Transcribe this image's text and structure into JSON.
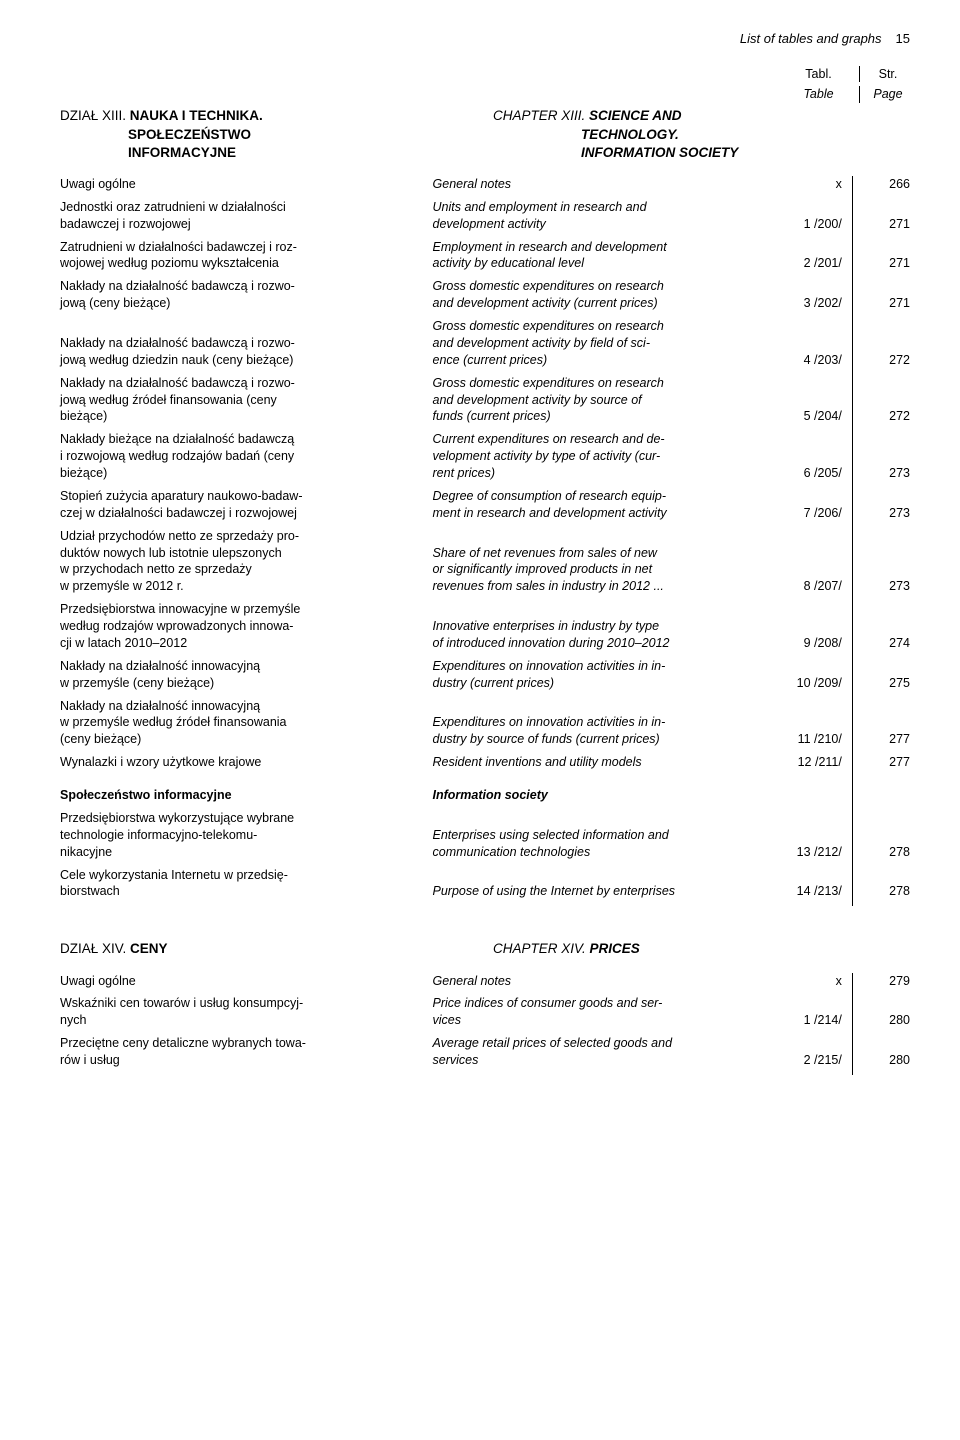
{
  "header": {
    "title_italic": "List of tables and graphs",
    "page_num": "15"
  },
  "colhead": {
    "c1a": "Tabl.",
    "c1b": "Table",
    "c2a": "Str.",
    "c2b": "Page"
  },
  "section13": {
    "pl_lab": "DZIAŁ  XIII.",
    "pl_main": "NAUKA  I  TECHNIKA.",
    "pl_sub": "SPOŁECZEŃSTWO",
    "pl_sub2": "INFORMACYJNE",
    "en_lab": "CHAPTER  XIII.",
    "en_main": "SCIENCE  AND",
    "en_sub": "TECHNOLOGY.",
    "en_sub2": "INFORMATION SOCIETY"
  },
  "rows13": [
    {
      "pl1": "",
      "pl2": "Uwagi ogólne",
      "en1": "",
      "en2": "General notes",
      "tbl": "x",
      "pg": "266"
    },
    {
      "pl1": "Jednostki oraz zatrudnieni w działalności",
      "pl2": "badawczej i rozwojowej",
      "en1": "Units and employment in research and",
      "en2": "development activity",
      "tbl": "1 /200/",
      "pg": "271"
    },
    {
      "pl1": "Zatrudnieni w działalności badawczej i roz-\nwojowej według poziomu wykształcenia",
      "pl2": "",
      "en1": "Employment in research and development",
      "en2": "activity by educational level",
      "tbl": "2 /201/",
      "pg": "271",
      "nodots_pl": true
    },
    {
      "pl1": "Nakłady na działalność badawczą i rozwo-",
      "pl2": "jową (ceny bieżące)",
      "en1": "Gross domestic expenditures on research\nand development activity (current prices)",
      "en2": "",
      "tbl": "3 /202/",
      "pg": "271",
      "nodots_en": true
    },
    {
      "pl1": "Nakłady na działalność badawczą i rozwo-\njową według dziedzin nauk (ceny bieżące)",
      "pl2": "",
      "en1": "Gross domestic expenditures on research\nand development activity by field of sci-",
      "en2": "ence (current prices)",
      "tbl": "4 /203/",
      "pg": "272",
      "nodots_pl": true
    },
    {
      "pl1": "Nakłady na działalność badawczą i rozwo-\njową według źródeł finansowania (ceny",
      "pl2": "bieżące)",
      "en1": "Gross domestic expenditures on research\nand development activity by source of",
      "en2": "funds (current prices)",
      "tbl": "5 /204/",
      "pg": "272"
    },
    {
      "pl1": "Nakłady bieżące na działalność badawczą\ni rozwojową według rodzajów badań (ceny",
      "pl2": "bieżące)",
      "en1": "Current expenditures on research and de-\nvelopment activity by type of activity (cur-",
      "en2": "rent prices)",
      "tbl": "6 /205/",
      "pg": "273"
    },
    {
      "pl1": "Stopień zużycia aparatury naukowo-badaw-\nczej w działalności badawczej i rozwojowej",
      "pl2": "",
      "en1": "Degree of consumption of research equip-\nment in research and development activity",
      "en2": "",
      "tbl": "7 /206/",
      "pg": "273",
      "nodots_pl": true,
      "nodots_en": true
    },
    {
      "pl1": "Udział przychodów netto ze sprzedaży pro-\nduktów nowych lub istotnie ulepszonych\nw przychodach netto ze sprzedaży",
      "pl2": "w przemyśle w 2012 r.",
      "en1": "Share of net revenues from sales of new\nor significantly improved products in net",
      "en2": "revenues from sales in industry in 2012",
      "tbl": "8 /207/",
      "pg": "273",
      "en_trail": "..."
    },
    {
      "pl1": "Przedsiębiorstwa innowacyjne w przemyśle\nwedług rodzajów wprowadzonych innowa-",
      "pl2": "cji w latach 2010–2012",
      "en1": "Innovative enterprises in industry by type\nof introduced innovation during 2010–2012",
      "en2": "",
      "tbl": "9 /208/",
      "pg": "274",
      "nodots_en": true
    },
    {
      "pl1": "Nakłady na działalność innowacyjną",
      "pl2": "w przemyśle (ceny bieżące)",
      "en1": "Expenditures on innovation activities in in-",
      "en2": "dustry (current prices)",
      "tbl": "10 /209/",
      "pg": "275"
    },
    {
      "pl1": "Nakłady na działalność innowacyjną\nw przemyśle według źródeł finansowania",
      "pl2": "(ceny bieżące)",
      "en1": "Expenditures on innovation activities in in-\ndustry by source of funds (current prices)",
      "en2": "",
      "tbl": "11 /210/",
      "pg": "277",
      "nodots_en": true
    },
    {
      "pl1": "",
      "pl2": "Wynalazki i wzory użytkowe krajowe",
      "en1": "",
      "en2": "Resident inventions and utility models",
      "tbl": "12 /211/",
      "pg": "277"
    }
  ],
  "subhead13": {
    "pl": "Społeczeństwo informacyjne",
    "en": "Information society"
  },
  "rows13b": [
    {
      "pl1": "Przedsiębiorstwa wykorzystujące wybrane\ntechnologie informacyjno-telekomu-",
      "pl2": "nikacyjne",
      "en1": "Enterprises using selected information and",
      "en2": "communication technologies",
      "tbl": "13 /212/",
      "pg": "278"
    },
    {
      "pl1": "Cele wykorzystania Internetu w przedsię-",
      "pl2": "biorstwach",
      "en1": "Purpose of using the Internet by enterprises",
      "en2": "",
      "tbl": "14 /213/",
      "pg": "278",
      "nodots_en": true
    }
  ],
  "section14": {
    "pl_lab": "DZIAŁ  XIV.",
    "pl_main": "CENY",
    "en_lab": "CHAPTER  XIV.",
    "en_main": "PRICES"
  },
  "rows14": [
    {
      "pl1": "",
      "pl2": "Uwagi ogólne",
      "en1": "",
      "en2": "General notes",
      "tbl": "x",
      "pg": "279"
    },
    {
      "pl1": "Wskaźniki cen towarów i usług konsumpcyj-",
      "pl2": "nych",
      "en1": "Price indices of consumer goods and ser-",
      "en2": "vices",
      "tbl": "1 /214/",
      "pg": "280"
    },
    {
      "pl1": "Przeciętne ceny detaliczne wybranych towa-",
      "pl2": "rów i usług",
      "en1": "Average retail prices of selected goods and",
      "en2": "services",
      "tbl": "2 /215/",
      "pg": "280"
    }
  ]
}
